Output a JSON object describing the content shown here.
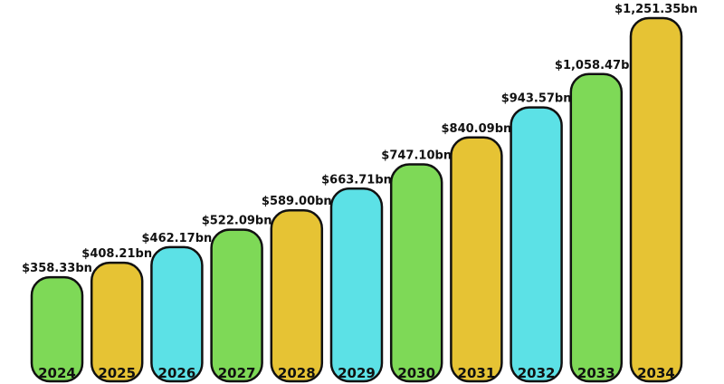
{
  "chart_data": {
    "type": "bar",
    "title": "",
    "xlabel": "",
    "ylabel": "",
    "categories": [
      "2024",
      "2025",
      "2026",
      "2027",
      "2028",
      "2029",
      "2030",
      "2031",
      "2032",
      "2033",
      "2034"
    ],
    "values": [
      358.33,
      408.21,
      462.17,
      522.09,
      589.0,
      663.71,
      747.1,
      840.09,
      943.57,
      1058.47,
      1251.35
    ],
    "value_labels": [
      "$358.33bn",
      "$408.21bn",
      "$462.17bn",
      "$522.09bn",
      "$589.00bn",
      "$663.71bn",
      "$747.10bn",
      "$840.09bn",
      "$943.57bn",
      "$1,058.47bn",
      "$1,251.35bn"
    ],
    "bar_colors": [
      "#7ED957",
      "#E6C334",
      "#5CE1E6",
      "#7ED957",
      "#E6C334",
      "#5CE1E6",
      "#7ED957",
      "#E6C334",
      "#5CE1E6",
      "#7ED957",
      "#E6C334"
    ],
    "grid": false,
    "legend": "none"
  }
}
